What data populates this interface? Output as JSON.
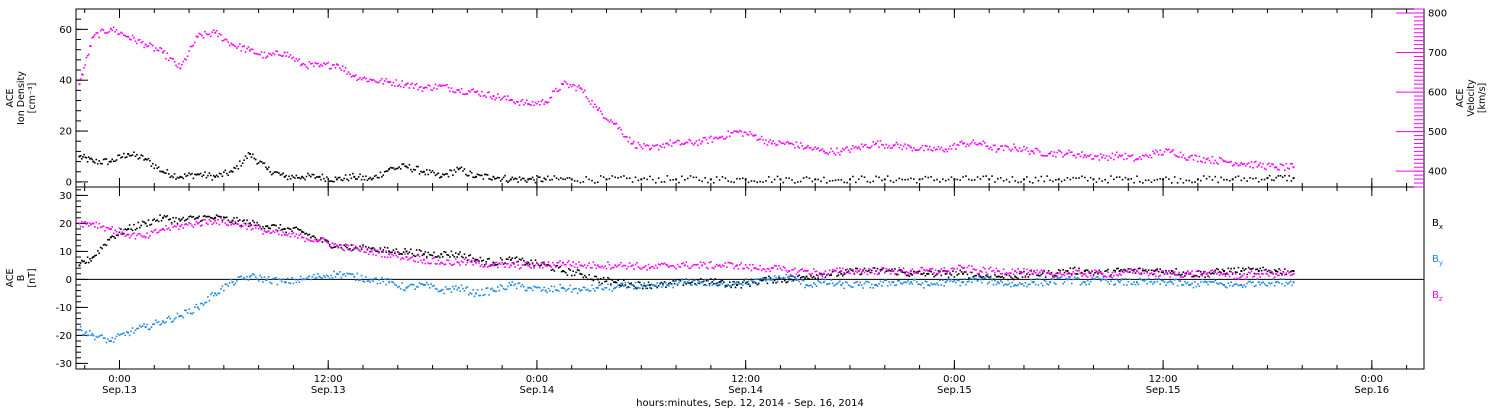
{
  "chart_data": {
    "type": "scatter",
    "xlabel": "hours:minutes, Sep. 12, 2014 - Sep. 16, 2014",
    "x_ticks": [
      {
        "time": "0:00",
        "date": "Sep.13",
        "hours": 24
      },
      {
        "time": "12:00",
        "date": "Sep.13",
        "hours": 36
      },
      {
        "time": "0:00",
        "date": "Sep.14",
        "hours": 48
      },
      {
        "time": "12:00",
        "date": "Sep.14",
        "hours": 60
      },
      {
        "time": "0:00",
        "date": "Sep.15",
        "hours": 72
      },
      {
        "time": "12:00",
        "date": "Sep.15",
        "hours": 84
      },
      {
        "time": "0:00",
        "date": "Sep.16",
        "hours": 96
      }
    ],
    "xlim_hours": [
      21.5,
      99
    ],
    "colors": {
      "black": "#000000",
      "magenta": "#ff00ff",
      "blue": "#1e88e5"
    },
    "panels": [
      {
        "ylabel_lines": [
          "ACE",
          "Ion Density",
          "[cm⁻³]"
        ],
        "ylim": [
          -2,
          68
        ],
        "yticks": [
          0,
          20,
          40,
          60
        ],
        "y2label_lines": [
          "ACE",
          "Velocity",
          "[km/s]"
        ],
        "y2lim": [
          360,
          810
        ],
        "y2ticks": [
          400,
          500,
          600,
          700,
          800
        ],
        "series": [
          {
            "axis": "left",
            "color": "#000000",
            "x_hours": [
              21.7,
              22.5,
              23.5,
              24.5,
              25.5,
              26.5,
              27.5,
              28.5,
              29.5,
              30.5,
              31.5,
              32.5,
              33.5,
              34.5,
              35.5,
              36.5,
              37.5,
              38.5,
              39.5,
              40.5,
              41.5,
              42.5,
              43.5,
              44.5,
              45.5,
              46.5,
              47.5,
              48.5,
              50,
              52,
              54,
              56,
              58,
              60,
              62,
              64,
              66,
              68,
              70,
              72,
              74,
              76,
              78,
              80,
              82,
              84,
              86,
              88,
              90,
              91.5
            ],
            "values": [
              10,
              8,
              8,
              11,
              9,
              4,
              2,
              3,
              2,
              4,
              11,
              5,
              2,
              2,
              2,
              1,
              2,
              1,
              5,
              6,
              4,
              2,
              5,
              2,
              2,
              1,
              1,
              1,
              1,
              1,
              1,
              1,
              1,
              1,
              1,
              1,
              1,
              1,
              1,
              1,
              1,
              1,
              1,
              1,
              1,
              1,
              1,
              1,
              1.5,
              1.5
            ]
          },
          {
            "axis": "right",
            "color": "#ff00ff",
            "x_hours": [
              21.7,
              22.5,
              23.5,
              24.5,
              25.5,
              26.5,
              27.5,
              28.5,
              29.5,
              30.5,
              31.5,
              32.5,
              33.5,
              34.5,
              35.5,
              36.5,
              37.5,
              38.5,
              39.5,
              40.5,
              41.5,
              42.5,
              43.5,
              44.5,
              45.5,
              46.5,
              47.5,
              48.5,
              49.5,
              50.5,
              51.5,
              52.5,
              53.5,
              54.5,
              55.5,
              56.5,
              57.5,
              58.5,
              59.5,
              60.5,
              61.5,
              62.5,
              63.5,
              64.5,
              65.5,
              66.5,
              67.5,
              68.5,
              69.5,
              70.5,
              71.5,
              72.5,
              73.5,
              74.5,
              75.5,
              76.5,
              77.5,
              78.5,
              79.5,
              80.5,
              81.5,
              82.5,
              83.5,
              84.5,
              85.5,
              86.5,
              87.5,
              88.5,
              89.5,
              90.5,
              91.5
            ],
            "values": [
              620,
              740,
              760,
              740,
              720,
              700,
              660,
              740,
              750,
              720,
              705,
              690,
              700,
              670,
              665,
              670,
              640,
              630,
              625,
              620,
              610,
              615,
              605,
              600,
              590,
              580,
              570,
              575,
              620,
              610,
              555,
              520,
              470,
              455,
              470,
              470,
              475,
              485,
              500,
              490,
              470,
              470,
              460,
              450,
              450,
              460,
              470,
              465,
              460,
              455,
              455,
              470,
              470,
              455,
              460,
              450,
              445,
              445,
              440,
              435,
              440,
              430,
              445,
              450,
              435,
              430,
              425,
              420,
              415,
              410,
              410
            ]
          }
        ]
      },
      {
        "ylabel_lines": [
          "ACE",
          "B",
          "[nT]"
        ],
        "ylim": [
          -32,
          33
        ],
        "yticks": [
          -30,
          -20,
          -10,
          0,
          10,
          20,
          30
        ],
        "zero_line": true,
        "series": [
          {
            "name": "B",
            "subscript": "x",
            "color": "#000000",
            "x_hours": [
              21.7,
              22.5,
              23.5,
              24.5,
              25.5,
              26.5,
              27.5,
              28.5,
              29.5,
              30.5,
              31.5,
              32.5,
              33.5,
              34.5,
              35.5,
              36.5,
              37.5,
              38.5,
              39.5,
              40.5,
              41.5,
              42.5,
              43.5,
              44.5,
              45.5,
              46.5,
              47.5,
              48.5,
              49.5,
              50.5,
              51.5,
              52.5,
              53.5,
              54.5,
              55.5,
              56.5,
              57.5,
              58.5,
              59.5,
              60.5,
              61.5,
              62.5,
              63.5,
              64.5,
              65.5,
              66.5,
              67.5,
              68.5,
              69.5,
              70.5,
              71.5,
              72.5,
              73.5,
              74.5,
              75.5,
              76.5,
              77.5,
              78.5,
              79.5,
              80.5,
              81.5,
              82.5,
              83.5,
              84.5,
              85.5,
              86.5,
              87.5,
              88.5,
              89.5,
              90.5,
              91.5
            ],
            "values": [
              5,
              8,
              15,
              18,
              20,
              22,
              21,
              22,
              22,
              21,
              20,
              19,
              18,
              17,
              14,
              12,
              11,
              11,
              10,
              10,
              9,
              9,
              9,
              7,
              6,
              7,
              6,
              5,
              3,
              2,
              0,
              -1,
              -2,
              -2,
              -2,
              -1,
              -1,
              -1,
              -2,
              -1,
              0,
              0,
              1,
              2,
              2,
              3,
              3,
              3,
              2,
              2,
              2,
              2,
              1,
              1,
              1,
              2,
              2,
              3,
              3,
              2,
              3,
              3,
              3,
              3,
              2,
              2,
              3,
              3,
              3,
              3,
              3
            ]
          },
          {
            "name": "B",
            "subscript": "y",
            "color": "#1e88e5",
            "x_hours": [
              21.7,
              22.5,
              23.5,
              24.5,
              25.5,
              26.5,
              27.5,
              28.5,
              29.5,
              30.5,
              31.5,
              32.5,
              33.5,
              34.5,
              35.5,
              36.5,
              37.5,
              38.5,
              39.5,
              40.5,
              41.5,
              42.5,
              43.5,
              44.5,
              45.5,
              46.5,
              47.5,
              48.5,
              49.5,
              50.5,
              51.5,
              52.5,
              53.5,
              54.5,
              55.5,
              56.5,
              57.5,
              58.5,
              59.5,
              60.5,
              61.5,
              62.5,
              63.5,
              64.5,
              65.5,
              66.5,
              67.5,
              68.5,
              69.5,
              70.5,
              71.5,
              72.5,
              73.5,
              74.5,
              75.5,
              76.5,
              77.5,
              78.5,
              79.5,
              80.5,
              81.5,
              82.5,
              83.5,
              84.5,
              85.5,
              86.5,
              87.5,
              88.5,
              89.5,
              90.5,
              91.5
            ],
            "values": [
              -18,
              -20,
              -22,
              -19,
              -17,
              -15,
              -13,
              -10,
              -5,
              -1,
              1,
              0,
              -1,
              0,
              1,
              2,
              1,
              0,
              -1,
              -3,
              -2,
              -4,
              -3,
              -5,
              -4,
              -2,
              -3,
              -4,
              -3,
              -4,
              -3,
              -3,
              -2,
              -3,
              -2,
              -1,
              -1,
              -2,
              -1,
              -1,
              0,
              1,
              -2,
              -1,
              -2,
              -2,
              -2,
              -1,
              -1,
              -2,
              -1,
              -1,
              0,
              -1,
              -2,
              -1,
              -1,
              0,
              -1,
              0,
              -1,
              -1,
              -1,
              -1,
              -2,
              -1,
              -2,
              -2,
              -1,
              -1,
              -1
            ]
          },
          {
            "name": "B",
            "subscript": "z",
            "color": "#ff00ff",
            "x_hours": [
              21.7,
              22.5,
              23.5,
              24.5,
              25.5,
              26.5,
              27.5,
              28.5,
              29.5,
              30.5,
              31.5,
              32.5,
              33.5,
              34.5,
              35.5,
              36.5,
              37.5,
              38.5,
              39.5,
              40.5,
              41.5,
              42.5,
              43.5,
              44.5,
              45.5,
              46.5,
              47.5,
              48.5,
              49.5,
              50.5,
              51.5,
              52.5,
              53.5,
              54.5,
              55.5,
              56.5,
              57.5,
              58.5,
              59.5,
              60.5,
              61.5,
              62.5,
              63.5,
              64.5,
              65.5,
              66.5,
              67.5,
              68.5,
              69.5,
              70.5,
              71.5,
              72.5,
              73.5,
              74.5,
              75.5,
              76.5,
              77.5,
              78.5,
              79.5,
              80.5,
              81.5,
              82.5,
              83.5,
              84.5,
              85.5,
              86.5,
              87.5,
              88.5,
              89.5,
              90.5,
              91.5
            ],
            "values": [
              20,
              20,
              18,
              16,
              15,
              18,
              19,
              20,
              21,
              20,
              19,
              17,
              16,
              15,
              14,
              12,
              11,
              10,
              9,
              8,
              7,
              6,
              6,
              6,
              5,
              5,
              5,
              5,
              6,
              5,
              5,
              5,
              5,
              4,
              5,
              5,
              5,
              5,
              5,
              4,
              4,
              3,
              3,
              2,
              3,
              3,
              3,
              3,
              3,
              3,
              3,
              4,
              3,
              3,
              3,
              2,
              2,
              2,
              2,
              2,
              2,
              3,
              2,
              2,
              2,
              2,
              2,
              1,
              2,
              2,
              2
            ]
          }
        ]
      }
    ]
  }
}
